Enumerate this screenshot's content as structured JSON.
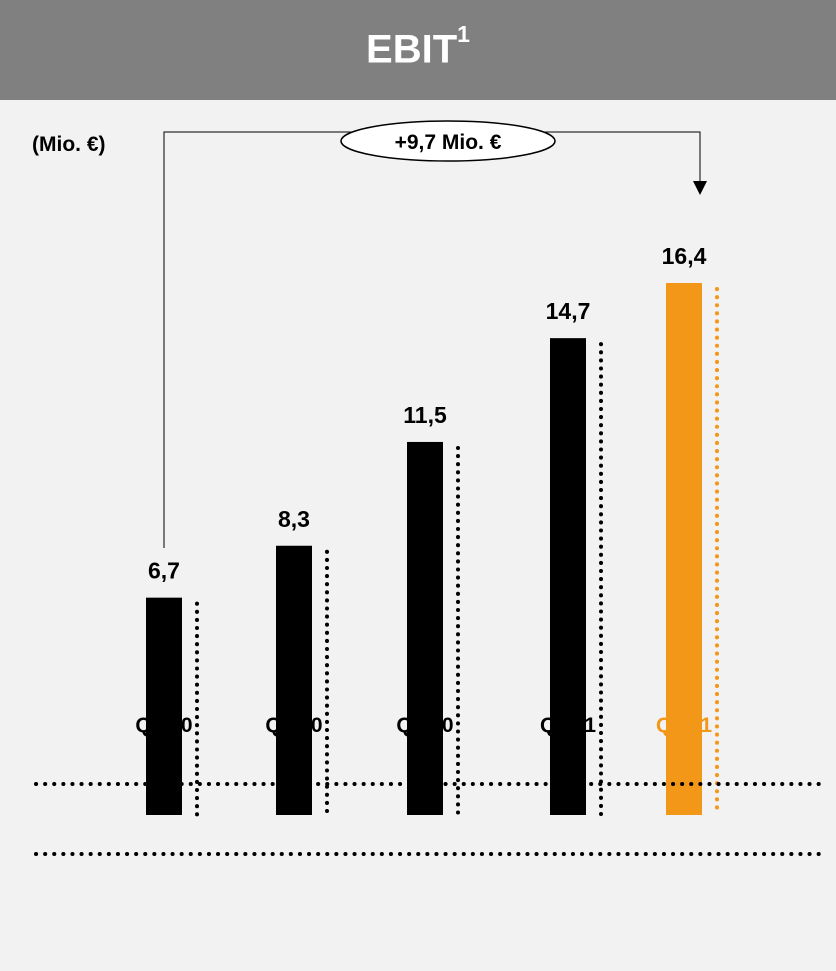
{
  "header": {
    "title": "EBIT",
    "superscript": "1",
    "background": "#808080"
  },
  "chart_data": {
    "type": "bar",
    "unit_label": "(Mio. €)",
    "categories": [
      "Q2/10",
      "Q3/10",
      "Q4/10",
      "Q1/11",
      "Q2/11"
    ],
    "values": [
      6.7,
      8.3,
      11.5,
      14.7,
      16.4
    ],
    "value_labels": [
      "6,7",
      "8,3",
      "11,5",
      "14,7",
      "16,4"
    ],
    "bar_colors": [
      "#000000",
      "#000000",
      "#000000",
      "#000000",
      "#f39718"
    ],
    "category_colors": [
      "#000000",
      "#000000",
      "#000000",
      "#000000",
      "#f39718"
    ],
    "highlight_color": "#f39718",
    "ylim": [
      0,
      16.4
    ],
    "annotation": {
      "text": "+9,7 Mio. €",
      "from_category": "Q2/10",
      "to_category": "Q2/11"
    },
    "grid": false,
    "legend": "none"
  }
}
